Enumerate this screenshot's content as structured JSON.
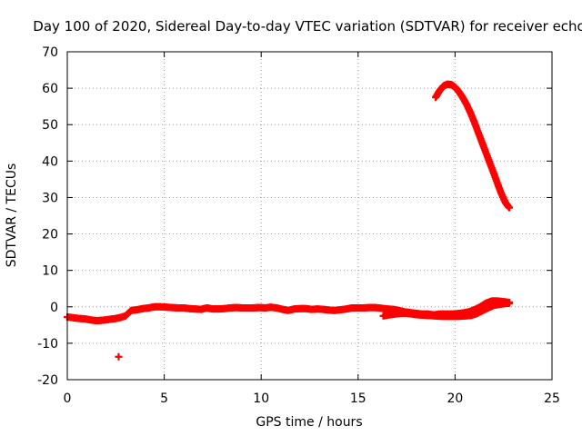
{
  "chart_data": {
    "type": "scatter",
    "title": "Day 100 of 2020, Sidereal Day-to-day VTEC variation (SDTVAR) for receiver echo",
    "xlabel": "GPS time / hours",
    "ylabel": "SDTVAR / TECUs",
    "xlim": [
      0,
      25
    ],
    "ylim": [
      -20,
      70
    ],
    "xticks": [
      0,
      5,
      10,
      15,
      20,
      25
    ],
    "yticks": [
      -20,
      -10,
      0,
      10,
      20,
      30,
      40,
      50,
      60,
      70
    ],
    "grid": true,
    "marker_color": "#ff0000",
    "series": [
      {
        "name": "main track",
        "x": [
          0.0,
          0.3,
          0.6,
          0.9,
          1.2,
          1.5,
          1.8,
          2.1,
          2.4,
          2.7,
          3.0,
          3.3,
          3.6,
          3.9,
          4.2,
          4.5,
          4.8,
          5.1,
          5.4,
          5.7,
          6.0,
          6.3,
          6.6,
          6.9,
          7.2,
          7.5,
          7.8,
          8.1,
          8.4,
          8.7,
          9.0,
          9.3,
          9.6,
          9.9,
          10.2,
          10.5,
          10.8,
          11.1,
          11.4,
          11.7,
          12.0,
          12.3,
          12.6,
          12.9,
          13.2,
          13.5,
          13.8,
          14.1,
          14.4,
          14.7,
          15.0,
          15.3,
          15.6,
          15.9,
          16.2,
          16.5,
          16.8,
          17.1,
          17.4,
          17.7,
          18.0,
          18.3,
          18.6,
          18.9,
          19.2,
          19.5,
          19.8,
          20.1,
          20.4,
          20.7,
          21.0,
          21.3,
          21.6,
          21.9,
          22.2,
          22.5,
          22.8
        ],
        "y": [
          -2.8,
          -3.0,
          -3.2,
          -3.3,
          -3.6,
          -3.8,
          -3.7,
          -3.5,
          -3.3,
          -3.0,
          -2.5,
          -1.0,
          -0.8,
          -0.5,
          -0.3,
          0.0,
          0.0,
          -0.1,
          -0.2,
          -0.3,
          -0.3,
          -0.5,
          -0.6,
          -0.7,
          -0.3,
          -0.6,
          -0.6,
          -0.5,
          -0.3,
          -0.2,
          -0.3,
          -0.3,
          -0.3,
          -0.2,
          -0.3,
          -0.1,
          -0.3,
          -0.7,
          -1.0,
          -0.6,
          -0.5,
          -0.5,
          -0.7,
          -0.6,
          -0.7,
          -0.9,
          -1.0,
          -0.8,
          -0.6,
          -0.3,
          -0.3,
          -0.3,
          -0.2,
          -0.2,
          -0.4,
          -0.6,
          -0.7,
          -1.0,
          -1.4,
          -1.6,
          -1.8,
          -2.0,
          -2.0,
          -2.2,
          -2.0,
          -2.0,
          -2.0,
          -1.9,
          -1.7,
          -1.4,
          -0.8,
          0.0,
          1.0,
          1.6,
          1.6,
          1.4,
          1.2
        ]
      },
      {
        "name": "low branch",
        "x": [
          16.3,
          16.6,
          16.9,
          17.2,
          17.5,
          17.8,
          18.1,
          18.4,
          18.7,
          19.0,
          19.3,
          19.6,
          19.9,
          20.2,
          20.5,
          20.8,
          21.1,
          21.4,
          21.7,
          22.0,
          22.3,
          22.6,
          22.8
        ],
        "y": [
          -2.5,
          -2.2,
          -2.0,
          -1.8,
          -1.8,
          -2.0,
          -2.2,
          -2.3,
          -2.4,
          -2.5,
          -2.6,
          -2.6,
          -2.6,
          -2.6,
          -2.5,
          -2.4,
          -1.9,
          -1.1,
          -0.3,
          0.4,
          0.7,
          0.9,
          1.0
        ]
      },
      {
        "name": "isolated point",
        "x": [
          2.65
        ],
        "y": [
          -13.7
        ]
      },
      {
        "name": "high arc",
        "x": [
          19.0,
          19.2,
          19.4,
          19.6,
          19.8,
          20.0,
          20.2,
          20.4,
          20.6,
          20.8,
          21.0,
          21.2,
          21.4,
          21.6,
          21.8,
          22.0,
          22.2,
          22.4,
          22.6,
          22.8
        ],
        "y": [
          57.5,
          59.3,
          60.6,
          61.1,
          61.0,
          60.3,
          59.0,
          57.4,
          55.5,
          53.2,
          50.6,
          47.8,
          45.0,
          42.2,
          39.4,
          36.6,
          33.7,
          30.9,
          28.6,
          27.2
        ]
      }
    ]
  }
}
